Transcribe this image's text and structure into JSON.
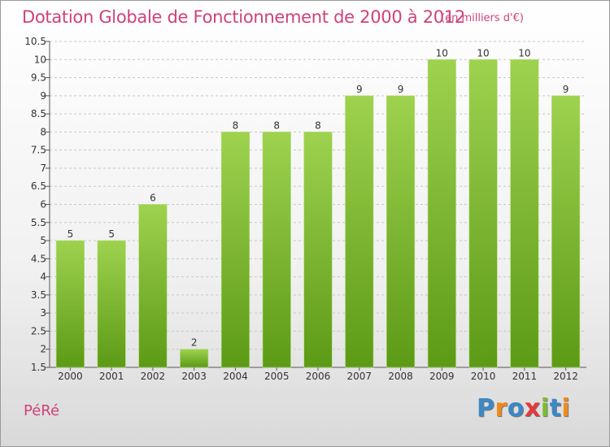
{
  "title": "Dotation Globale de Fonctionnement de 2000 à 2012",
  "subtitle": "(en milliers d'€)",
  "commune": "PéRé",
  "logo": {
    "letters": [
      "P",
      "r",
      "o",
      "x",
      "i",
      "t",
      "i"
    ],
    "colors": [
      "#3a88c6",
      "#ef8a1c",
      "#3a88c6",
      "#e23a3a",
      "#7cbd2e",
      "#3a88c6",
      "#ef8a1c"
    ]
  },
  "colors": {
    "bar_top": "#9ed24f",
    "bar_bottom": "#5c9a16",
    "title": "#d0417a"
  },
  "chart_data": {
    "type": "bar",
    "title": "Dotation Globale de Fonctionnement de 2000 à 2012",
    "subtitle": "(en milliers d'€)",
    "xlabel": "",
    "ylabel": "",
    "categories": [
      "2000",
      "2001",
      "2002",
      "2003",
      "2004",
      "2005",
      "2006",
      "2007",
      "2008",
      "2009",
      "2010",
      "2011",
      "2012"
    ],
    "values": [
      5,
      5,
      6,
      2,
      8,
      8,
      8,
      9,
      9,
      10,
      10,
      10,
      9
    ],
    "data_labels": [
      "5",
      "5",
      "6",
      "2",
      "8",
      "8",
      "8",
      "9",
      "9",
      "10",
      "10",
      "10",
      "9"
    ],
    "ylim": [
      1.5,
      10.5
    ],
    "yticks": [
      "1.5",
      "2",
      "2.5",
      "3",
      "3.5",
      "4",
      "4.5",
      "5",
      "5.5",
      "6",
      "6.5",
      "7",
      "7.5",
      "8",
      "8.5",
      "9",
      "9.5",
      "10",
      "10.5"
    ],
    "grid": true,
    "legend": "none"
  }
}
